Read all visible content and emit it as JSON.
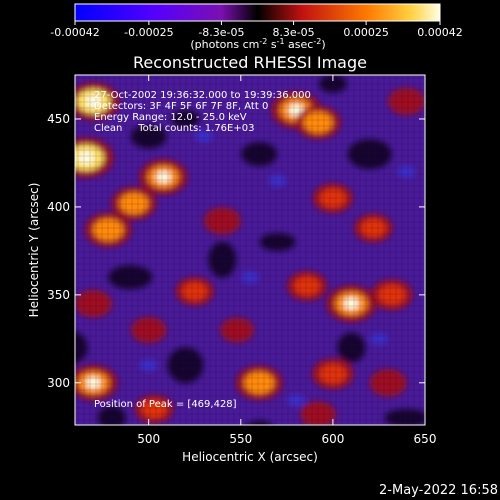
{
  "chart_data": {
    "type": "heatmap",
    "title": "Reconstructed RHESSI Image",
    "xlabel": "Heliocentric X (arcsec)",
    "ylabel": "Heliocentric Y (arcsec)",
    "xlim": [
      460,
      650
    ],
    "ylim": [
      276,
      475
    ],
    "x_ticks": [
      500,
      550,
      600,
      650
    ],
    "y_ticks": [
      300,
      350,
      400,
      450
    ],
    "colorbar": {
      "ticks": [
        "-0.00042",
        "-0.00025",
        "-8.3e-05",
        "8.3e-05",
        "0.00025",
        "0.00042"
      ],
      "tick_values": [
        -0.00042,
        -0.00025,
        -8.3e-05,
        8.3e-05,
        0.00025,
        0.00042
      ],
      "range": [
        -0.00042,
        0.00042
      ],
      "unit_label": {
        "base": "(photons cm",
        "exp1": "-2",
        "mid": " s",
        "exp2": "-1",
        "mid2": " asec",
        "exp3": "-2",
        "end": ")"
      }
    },
    "annotations": [
      "27-Oct-2002 19:36:32.000 to 19:39:36.000",
      "Detectors: 3F 4F 5F 6F 7F 8F, Att 0",
      "Energy Range: 12.0 - 25.0 keV",
      "Clean     Total counts: 1.76E+03"
    ],
    "peak_label": "Position of Peak = [469,428]",
    "peak_position": [
      469,
      428
    ],
    "hot_spots": [
      {
        "x": 470,
        "y": 460,
        "v": 0.9
      },
      {
        "x": 466,
        "y": 428,
        "v": 1.0
      },
      {
        "x": 508,
        "y": 417,
        "v": 0.8
      },
      {
        "x": 492,
        "y": 402,
        "v": 0.7
      },
      {
        "x": 478,
        "y": 387,
        "v": 0.75
      },
      {
        "x": 540,
        "y": 392,
        "v": 0.45
      },
      {
        "x": 580,
        "y": 455,
        "v": 0.85
      },
      {
        "x": 592,
        "y": 448,
        "v": 0.7
      },
      {
        "x": 600,
        "y": 405,
        "v": 0.55
      },
      {
        "x": 622,
        "y": 388,
        "v": 0.5
      },
      {
        "x": 640,
        "y": 460,
        "v": 0.45
      },
      {
        "x": 610,
        "y": 345,
        "v": 0.85
      },
      {
        "x": 632,
        "y": 350,
        "v": 0.6
      },
      {
        "x": 586,
        "y": 355,
        "v": 0.55
      },
      {
        "x": 525,
        "y": 352,
        "v": 0.5
      },
      {
        "x": 470,
        "y": 345,
        "v": 0.45
      },
      {
        "x": 500,
        "y": 330,
        "v": 0.4
      },
      {
        "x": 560,
        "y": 300,
        "v": 0.75
      },
      {
        "x": 548,
        "y": 330,
        "v": 0.35
      },
      {
        "x": 600,
        "y": 305,
        "v": 0.6
      },
      {
        "x": 630,
        "y": 300,
        "v": 0.45
      },
      {
        "x": 470,
        "y": 300,
        "v": 0.8
      },
      {
        "x": 503,
        "y": 285,
        "v": 0.5
      },
      {
        "x": 592,
        "y": 282,
        "v": 0.4
      }
    ]
  },
  "footer": {
    "timestamp": "2-May-2022 16:58"
  }
}
